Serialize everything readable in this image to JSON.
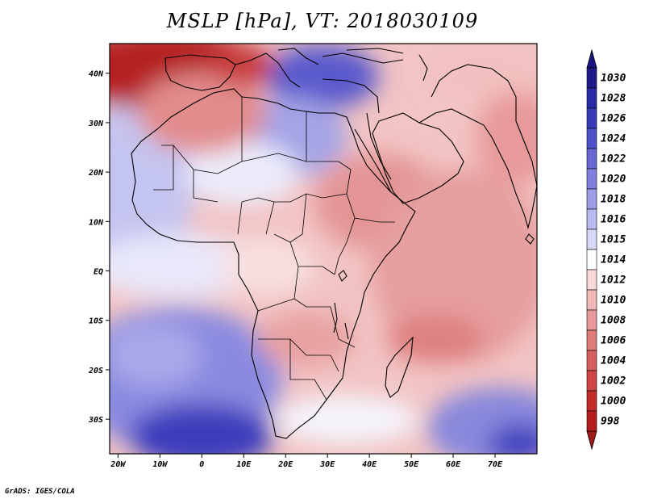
{
  "title": "MSLP [hPa], VT: 2018030109",
  "credit": "GrADS: IGES/COLA",
  "map": {
    "region": "Africa and surroundings",
    "variable": "Mean sea level pressure",
    "lon_range": [
      -22,
      80
    ],
    "lat_range": [
      -37,
      46
    ],
    "x_ticks": [
      {
        "lon": -20,
        "label": "20W"
      },
      {
        "lon": -10,
        "label": "10W"
      },
      {
        "lon": 0,
        "label": "0"
      },
      {
        "lon": 10,
        "label": "10E"
      },
      {
        "lon": 20,
        "label": "20E"
      },
      {
        "lon": 30,
        "label": "30E"
      },
      {
        "lon": 40,
        "label": "40E"
      },
      {
        "lon": 50,
        "label": "50E"
      },
      {
        "lon": 60,
        "label": "60E"
      },
      {
        "lon": 70,
        "label": "70E"
      }
    ],
    "y_ticks": [
      {
        "lat": 40,
        "label": "40N"
      },
      {
        "lat": 30,
        "label": "30N"
      },
      {
        "lat": 20,
        "label": "20N"
      },
      {
        "lat": 10,
        "label": "10N"
      },
      {
        "lat": 0,
        "label": "EQ"
      },
      {
        "lat": -10,
        "label": "10S"
      },
      {
        "lat": -20,
        "label": "20S"
      },
      {
        "lat": -30,
        "label": "30S"
      }
    ]
  },
  "colorbar": {
    "levels": [
      {
        "label": "1030",
        "color": "#1e1a8c"
      },
      {
        "label": "1028",
        "color": "#2b2aa6"
      },
      {
        "label": "1026",
        "color": "#3a3ab8"
      },
      {
        "label": "1024",
        "color": "#4f4fc9"
      },
      {
        "label": "1022",
        "color": "#6767d6"
      },
      {
        "label": "1020",
        "color": "#8080e0"
      },
      {
        "label": "1018",
        "color": "#9d9de8"
      },
      {
        "label": "1016",
        "color": "#babaf0"
      },
      {
        "label": "1015",
        "color": "#d8d8f7"
      },
      {
        "label": "1014",
        "color": "#ffffff"
      },
      {
        "label": "1012",
        "color": "#f8dada"
      },
      {
        "label": "1010",
        "color": "#f0b8b8"
      },
      {
        "label": "1008",
        "color": "#e89a9a"
      },
      {
        "label": "1006",
        "color": "#e07c7c"
      },
      {
        "label": "1004",
        "color": "#d85f5f"
      },
      {
        "label": "1002",
        "color": "#cf4444"
      },
      {
        "label": "1000",
        "color": "#c52c2c"
      },
      {
        "label": "998",
        "color": "#b41e1e"
      }
    ],
    "top_arrow_color": "#1a1480",
    "bottom_arrow_color": "#a01818"
  }
}
